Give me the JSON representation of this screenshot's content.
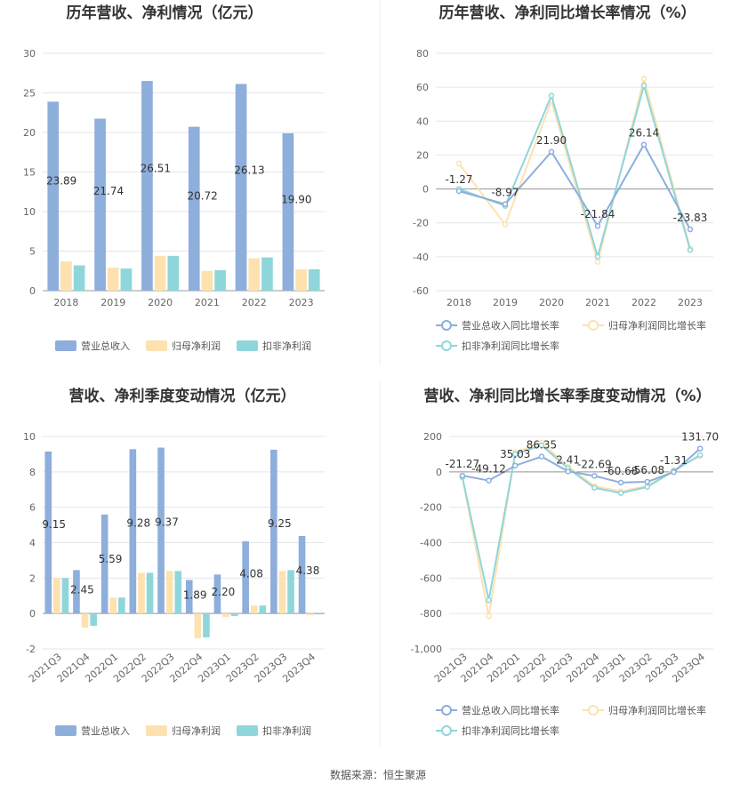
{
  "footer": "数据来源：恒生聚源",
  "chart_data": [
    {
      "type": "bar",
      "title": "历年营收、净利情况（亿元）",
      "categories": [
        "2018",
        "2019",
        "2020",
        "2021",
        "2022",
        "2023"
      ],
      "series": [
        {
          "name": "营业总收入",
          "values": [
            23.89,
            21.74,
            26.51,
            20.72,
            26.13,
            19.9
          ],
          "color": "#8eaedb"
        },
        {
          "name": "归母净利润",
          "values": [
            3.7,
            2.9,
            4.4,
            2.5,
            4.1,
            2.7
          ],
          "color": "#fde2b0"
        },
        {
          "name": "扣非净利润",
          "values": [
            3.2,
            2.8,
            4.4,
            2.6,
            4.2,
            2.7
          ],
          "color": "#8fd6db"
        }
      ],
      "labels": [
        "23.89",
        "21.74",
        "26.51",
        "20.72",
        "26.13",
        "19.90"
      ],
      "yticks": [
        "0",
        "5",
        "10",
        "15",
        "20",
        "25",
        "30"
      ],
      "ylim": [
        0,
        30
      ]
    },
    {
      "type": "line",
      "title": "历年营收、净利同比增长率情况（%）",
      "categories": [
        "2018",
        "2019",
        "2020",
        "2021",
        "2022",
        "2023"
      ],
      "series": [
        {
          "name": "营业总收入同比增长率",
          "values": [
            -1.27,
            -8.97,
            21.9,
            -21.84,
            26.14,
            -23.83
          ],
          "color": "#8eaedb"
        },
        {
          "name": "归母净利润同比增长率",
          "values": [
            15,
            -21,
            52,
            -43,
            65,
            -35
          ],
          "color": "#fde2b0"
        },
        {
          "name": "扣非净利润同比增长率",
          "values": [
            0,
            -10,
            55,
            -40,
            61,
            -36
          ],
          "color": "#8fd6db"
        }
      ],
      "labels": [
        "-1.27",
        "-8.97",
        "21.90",
        "-21.84",
        "26.14",
        "-23.83"
      ],
      "yticks": [
        "-60",
        "-40",
        "-20",
        "0",
        "20",
        "40",
        "60",
        "80"
      ],
      "ylim": [
        -60,
        80
      ]
    },
    {
      "type": "bar",
      "title": "营收、净利季度变动情况（亿元）",
      "categories": [
        "2021Q3",
        "2021Q4",
        "2022Q1",
        "2022Q2",
        "2022Q3",
        "2022Q4",
        "2023Q1",
        "2023Q2",
        "2023Q3",
        "2023Q4"
      ],
      "series": [
        {
          "name": "营业总收入",
          "values": [
            9.15,
            2.45,
            5.59,
            9.28,
            9.37,
            1.89,
            2.2,
            4.08,
            9.25,
            4.38
          ],
          "color": "#8eaedb"
        },
        {
          "name": "归母净利润",
          "values": [
            2.0,
            -0.8,
            0.9,
            2.3,
            2.4,
            -1.4,
            -0.2,
            0.45,
            2.4,
            -0.1
          ],
          "color": "#fde2b0"
        },
        {
          "name": "扣非净利润",
          "values": [
            2.0,
            -0.7,
            0.9,
            2.3,
            2.4,
            -1.35,
            -0.15,
            0.45,
            2.45,
            -0.05
          ],
          "color": "#8fd6db"
        }
      ],
      "labels": [
        "9.15",
        "2.45",
        "5.59",
        "9.28",
        "9.37",
        "1.89",
        "2.20",
        "4.08",
        "9.25",
        "4.38"
      ],
      "yticks": [
        "-2",
        "0",
        "2",
        "4",
        "6",
        "8",
        "10"
      ],
      "ylim": [
        -2,
        10
      ]
    },
    {
      "type": "line",
      "title": "营收、净利同比增长率季度变动情况（%）",
      "categories": [
        "2021Q3",
        "2021Q4",
        "2022Q1",
        "2022Q2",
        "2022Q3",
        "2022Q4",
        "2023Q1",
        "2023Q2",
        "2023Q3",
        "2023Q4"
      ],
      "series": [
        {
          "name": "营业总收入同比增长率",
          "values": [
            -21.27,
            -49.12,
            35.03,
            86.35,
            2.41,
            -22.69,
            -60.68,
            -56.08,
            -1.31,
            131.7
          ],
          "color": "#8eaedb"
        },
        {
          "name": "归母净利润同比增长率",
          "values": [
            -30,
            -815,
            110,
            165,
            30,
            -80,
            -110,
            -80,
            10,
            90
          ],
          "color": "#fde2b0"
        },
        {
          "name": "扣非净利润同比增长率",
          "values": [
            -30,
            -725,
            100,
            150,
            20,
            -90,
            -120,
            -85,
            5,
            95
          ],
          "color": "#8fd6db"
        }
      ],
      "labels": [
        "-21.27",
        "-49.12",
        "35.03",
        "86.35",
        "2.41",
        "-22.69",
        "-60.68",
        "-56.08",
        "-1.31",
        "131.70"
      ],
      "yticks": [
        "-1,000",
        "-800",
        "-600",
        "-400",
        "-200",
        "0",
        "200"
      ],
      "ylim": [
        -1000,
        200
      ]
    }
  ]
}
